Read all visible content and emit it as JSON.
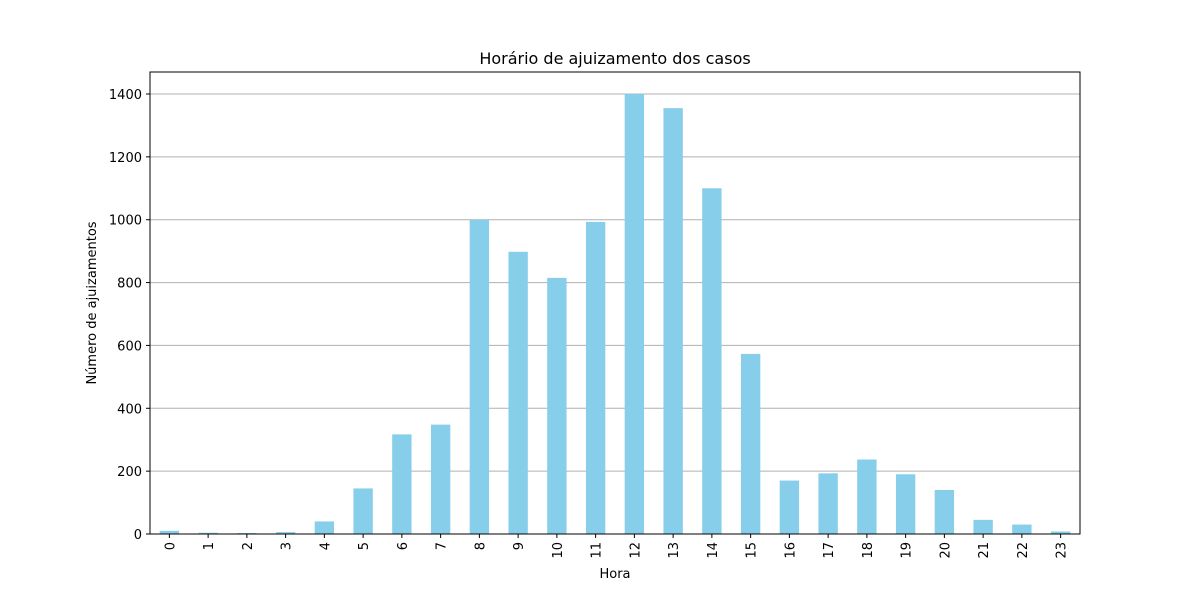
{
  "chart_data": {
    "type": "bar",
    "title": "Horário de ajuizamento dos casos",
    "xlabel": "Hora",
    "ylabel": "Número de ajuizamentos",
    "categories": [
      "0",
      "1",
      "2",
      "3",
      "4",
      "5",
      "6",
      "7",
      "8",
      "9",
      "10",
      "11",
      "12",
      "13",
      "14",
      "15",
      "16",
      "17",
      "18",
      "19",
      "20",
      "21",
      "22",
      "23"
    ],
    "values": [
      10,
      4,
      3,
      6,
      40,
      145,
      317,
      348,
      1000,
      898,
      815,
      993,
      1400,
      1355,
      1100,
      573,
      170,
      193,
      237,
      190,
      140,
      45,
      30,
      8
    ],
    "ylim": [
      0,
      1470
    ],
    "yticks": [
      0,
      200,
      400,
      600,
      800,
      1000,
      1200,
      1400
    ],
    "grid": "y",
    "bar_color": "#87ceeb",
    "grid_color": "#b0b0b0"
  }
}
